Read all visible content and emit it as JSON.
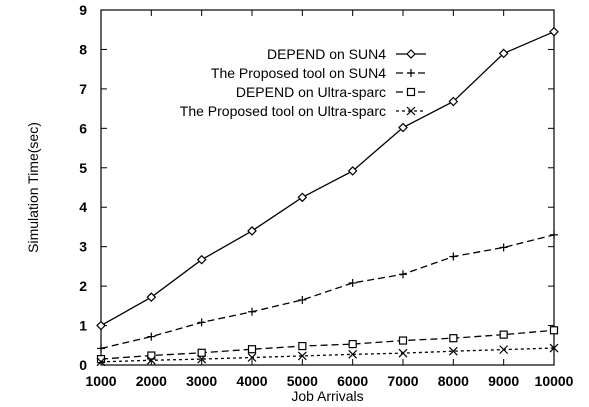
{
  "chart_data": {
    "type": "line",
    "title": "",
    "xlabel": "Job Arrivals",
    "ylabel": "Simulation Time(sec)",
    "x": [
      1000,
      2000,
      3000,
      4000,
      5000,
      6000,
      7000,
      8000,
      9000,
      10000
    ],
    "xlim": [
      1000,
      10000
    ],
    "ylim": [
      0,
      9
    ],
    "x_ticks": [
      "1000",
      "2000",
      "3000",
      "4000",
      "5000",
      "6000",
      "7000",
      "8000",
      "9000",
      "10000"
    ],
    "y_ticks": [
      "0",
      "1",
      "2",
      "3",
      "4",
      "5",
      "6",
      "7",
      "8",
      "9"
    ],
    "grid": false,
    "legend_position": "top-right",
    "series": [
      {
        "name": "DEPEND on SUN4",
        "marker": "diamond",
        "line": "solid",
        "values": [
          1.0,
          1.72,
          2.67,
          3.4,
          4.25,
          4.92,
          6.02,
          6.68,
          7.9,
          8.45
        ]
      },
      {
        "name": "The Proposed tool on SUN4",
        "marker": "plus",
        "line": "dashed",
        "values": [
          0.42,
          0.72,
          1.08,
          1.35,
          1.65,
          2.08,
          2.3,
          2.75,
          2.98,
          3.3
        ]
      },
      {
        "name": "DEPEND on Ultra-sparc",
        "marker": "square",
        "line": "dashed",
        "values": [
          0.15,
          0.24,
          0.31,
          0.4,
          0.48,
          0.53,
          0.62,
          0.68,
          0.77,
          0.88
        ]
      },
      {
        "name": "The Proposed tool on Ultra-sparc",
        "marker": "x",
        "line": "dotted",
        "values": [
          0.08,
          0.12,
          0.15,
          0.19,
          0.23,
          0.27,
          0.3,
          0.35,
          0.39,
          0.43
        ]
      }
    ]
  }
}
